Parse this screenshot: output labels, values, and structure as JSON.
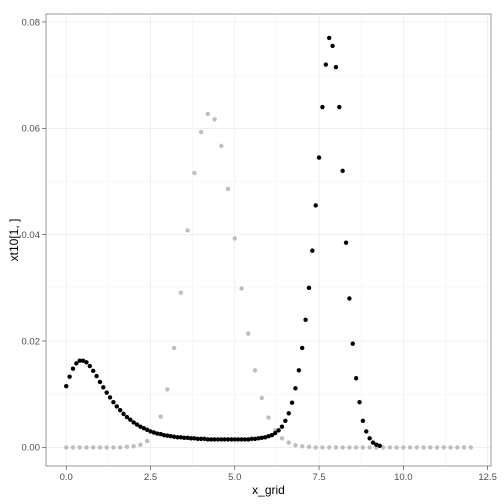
{
  "chart_data": {
    "type": "scatter",
    "xlabel": "x_grid",
    "ylabel": "xt10[1, ]",
    "xlim": [
      -0.6,
      12.6
    ],
    "ylim": [
      -0.0035,
      0.0815
    ],
    "xticks": [
      0.0,
      2.5,
      5.0,
      7.5,
      10.0,
      12.5
    ],
    "xtick_labels": [
      "0.0",
      "2.5",
      "5.0",
      "7.5",
      "10.0",
      "12.5"
    ],
    "yticks": [
      0.0,
      0.02,
      0.04,
      0.06,
      0.08
    ],
    "ytick_labels": [
      "0.00",
      "0.02",
      "0.04",
      "0.06",
      "0.08"
    ],
    "grid": true,
    "legend": "none",
    "series": [
      {
        "color": "#bdbdbd",
        "x": [
          0.0,
          0.2,
          0.4,
          0.6,
          0.8,
          1.0,
          1.2,
          1.4,
          1.6,
          1.8,
          2.0,
          2.2,
          2.4,
          2.6,
          2.8,
          3.0,
          3.2,
          3.4,
          3.6,
          3.8,
          4.0,
          4.2,
          4.4,
          4.6,
          4.8,
          5.0,
          5.2,
          5.4,
          5.6,
          5.8,
          6.0,
          6.2,
          6.4,
          6.6,
          6.8,
          7.0,
          7.2,
          7.4,
          7.6,
          7.8,
          8.0,
          8.2,
          8.4,
          8.6,
          8.8,
          9.0,
          9.2,
          9.4,
          9.6,
          9.8,
          10.0,
          10.2,
          10.4,
          10.6,
          10.8,
          11.0,
          11.2,
          11.4,
          11.6,
          11.8,
          12.0
        ],
        "y": [
          0,
          0,
          0,
          0,
          0,
          0,
          0,
          0,
          0,
          0.0001,
          0.0002,
          0.0005,
          0.0012,
          0.0028,
          0.0058,
          0.0109,
          0.0187,
          0.0291,
          0.0408,
          0.0516,
          0.0593,
          0.0627,
          0.0617,
          0.0567,
          0.0486,
          0.0393,
          0.0299,
          0.0214,
          0.0145,
          0.0093,
          0.0056,
          0.0032,
          0.0017,
          0.0009,
          0.0004,
          0.0002,
          0.0001,
          0,
          0,
          0,
          0,
          0,
          0,
          0,
          0,
          0,
          0,
          0,
          0,
          0,
          0,
          0,
          0,
          0,
          0,
          0,
          0,
          0,
          0,
          0,
          0
        ]
      },
      {
        "color": "#000000",
        "x": [
          0.0,
          0.1,
          0.2,
          0.3,
          0.4,
          0.5,
          0.6,
          0.7,
          0.8,
          0.9,
          1.0,
          1.1,
          1.2,
          1.3,
          1.4,
          1.5,
          1.6,
          1.7,
          1.8,
          1.9,
          2.0,
          2.1,
          2.2,
          2.3,
          2.4,
          2.5,
          2.6,
          2.7,
          2.8,
          2.9,
          3.0,
          3.1,
          3.2,
          3.3,
          3.4,
          3.5,
          3.6,
          3.7,
          3.8,
          3.9,
          4.0,
          4.1,
          4.2,
          4.3,
          4.4,
          4.5,
          4.6,
          4.7,
          4.8,
          4.9,
          5.0,
          5.1,
          5.2,
          5.3,
          5.4,
          5.5,
          5.6,
          5.7,
          5.8,
          5.9,
          6.0,
          6.1,
          6.2,
          6.3,
          6.4,
          6.5,
          6.6,
          6.7,
          6.8,
          6.9,
          7.0,
          7.1,
          7.2,
          7.3,
          7.4,
          7.5,
          7.6,
          7.7,
          7.8,
          7.9,
          8.0,
          8.1,
          8.2,
          8.3,
          8.4,
          8.5,
          8.6,
          8.7,
          8.8,
          8.9,
          9.0,
          9.1,
          9.2,
          9.3
        ],
        "y": [
          0.0115,
          0.0133,
          0.0148,
          0.0158,
          0.0163,
          0.0163,
          0.016,
          0.0153,
          0.0144,
          0.0134,
          0.0123,
          0.0113,
          0.0103,
          0.0094,
          0.0085,
          0.0077,
          0.007,
          0.0063,
          0.0057,
          0.0052,
          0.0047,
          0.0043,
          0.0039,
          0.0036,
          0.0033,
          0.003,
          0.0028,
          0.0026,
          0.0025,
          0.0023,
          0.0022,
          0.0021,
          0.002,
          0.0019,
          0.0019,
          0.0018,
          0.0018,
          0.0017,
          0.0017,
          0.0016,
          0.0016,
          0.0016,
          0.0015,
          0.0015,
          0.0015,
          0.0015,
          0.0015,
          0.0015,
          0.0015,
          0.0015,
          0.0015,
          0.0015,
          0.0015,
          0.0015,
          0.0015,
          0.0016,
          0.0016,
          0.0017,
          0.0018,
          0.0019,
          0.0021,
          0.0023,
          0.0027,
          0.0032,
          0.0039,
          0.005,
          0.0064,
          0.0084,
          0.0111,
          0.0145,
          0.0187,
          0.024,
          0.03,
          0.037,
          0.0455,
          0.0545,
          0.064,
          0.072,
          0.077,
          0.0755,
          0.0715,
          0.064,
          0.052,
          0.0385,
          0.028,
          0.0195,
          0.013,
          0.0085,
          0.005,
          0.003,
          0.0017,
          0.0009,
          0.0005,
          0.0003
        ]
      }
    ]
  }
}
